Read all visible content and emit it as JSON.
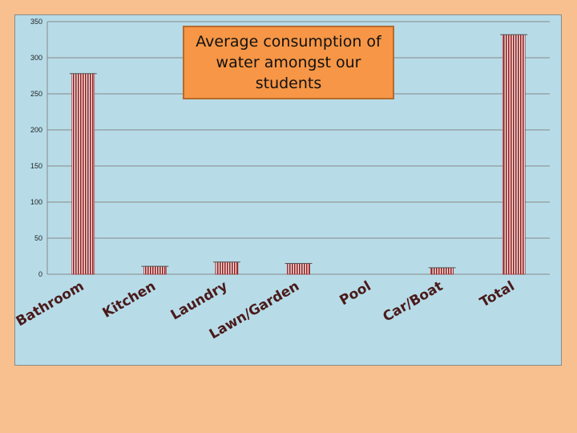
{
  "colors": {
    "page_background": "#f7c08e",
    "plot_background": "#b7dce8",
    "bar_fill": "#9b1c1c",
    "bar_stripe": "#e8e8e8",
    "title_box": "#f79646",
    "gridline": "#888888"
  },
  "chart_data": {
    "type": "bar",
    "title": "Average consumption of\nwater  amongst  our\nstudents",
    "xlabel": "",
    "ylabel": "",
    "ylim": [
      0,
      350
    ],
    "yticks": [
      0,
      50,
      100,
      150,
      200,
      250,
      300,
      350
    ],
    "grid": true,
    "categories": [
      "Bathroom",
      "Kitchen",
      "Laundry",
      "Lawn/Garden",
      "Pool",
      "Car/Boat",
      "Total"
    ],
    "values": [
      278,
      11,
      17,
      15,
      0,
      9,
      332
    ]
  }
}
